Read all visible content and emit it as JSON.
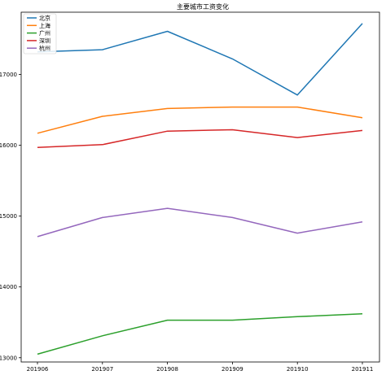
{
  "chart_data": {
    "type": "line",
    "title": "主要城市工资变化",
    "xlabel": "",
    "ylabel": "",
    "categories": [
      "201906",
      "201907",
      "201908",
      "201909",
      "201910",
      "201911"
    ],
    "y_ticks": [
      "13000",
      "14000",
      "15000",
      "16000",
      "17000"
    ],
    "ylim": [
      12940,
      17880
    ],
    "grid": false,
    "legend_position": "top-left",
    "series": [
      {
        "name": "北京",
        "color": "#1f77b4",
        "values": [
          17320,
          17350,
          17610,
          17220,
          16710,
          17720
        ]
      },
      {
        "name": "上海",
        "color": "#ff7f0e",
        "values": [
          16170,
          16410,
          16520,
          16540,
          16540,
          16390
        ]
      },
      {
        "name": "广州",
        "color": "#2ca02c",
        "values": [
          13050,
          13310,
          13530,
          13530,
          13580,
          13620
        ]
      },
      {
        "name": "深圳",
        "color": "#d62728",
        "values": [
          15970,
          16010,
          16200,
          16220,
          16110,
          16210
        ]
      },
      {
        "name": "杭州",
        "color": "#9467bd",
        "values": [
          14710,
          14980,
          15110,
          14980,
          14760,
          14920
        ]
      }
    ]
  }
}
